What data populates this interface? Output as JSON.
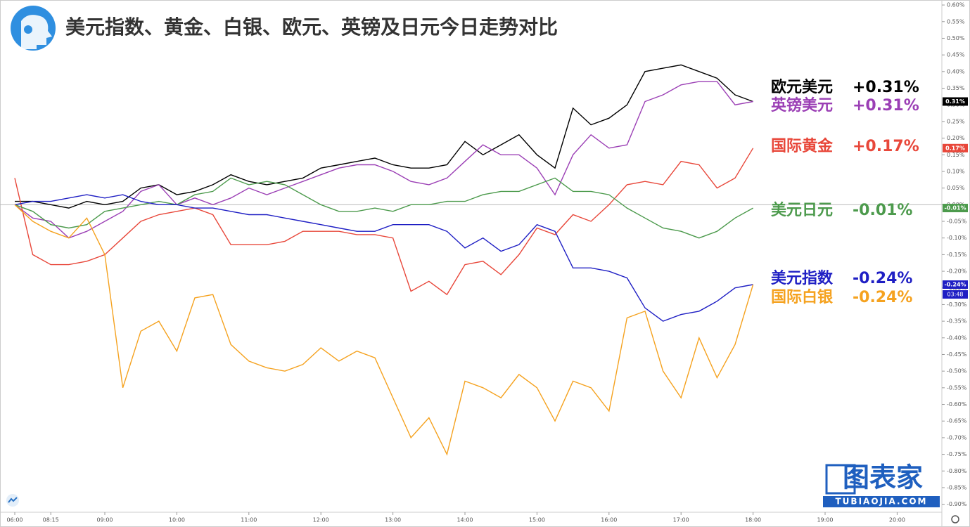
{
  "chart_data": {
    "type": "line",
    "title": "美元指数、黄金、白银、欧元、英镑及日元今日走势对比",
    "categories": [
      "06:00",
      null,
      "08:15",
      null,
      null,
      "09:00",
      null,
      null,
      null,
      "10:00",
      null,
      null,
      null,
      "11:00",
      null,
      null,
      null,
      "12:00",
      null,
      null,
      null,
      "13:00",
      null,
      null,
      null,
      "14:00",
      null,
      null,
      null,
      "15:00",
      null,
      null,
      null,
      "16:00",
      null,
      null,
      null,
      "17:00",
      null,
      null,
      null,
      "18:00",
      null,
      null,
      null,
      "19:00",
      null,
      null,
      null,
      "20:00"
    ],
    "series": [
      {
        "name": "欧元美元",
        "end_label": "+0.31%",
        "color": "#000000",
        "values": [
          0.01,
          0.01,
          0.0,
          -0.01,
          0.01,
          0.0,
          0.01,
          0.05,
          0.06,
          0.03,
          0.04,
          0.06,
          0.09,
          0.07,
          0.06,
          0.07,
          0.08,
          0.11,
          0.12,
          0.13,
          0.14,
          0.12,
          0.11,
          0.11,
          0.12,
          0.19,
          0.15,
          0.18,
          0.21,
          0.15,
          0.11,
          0.29,
          0.24,
          0.26,
          0.3,
          0.4,
          0.41,
          0.42,
          0.4,
          0.38,
          0.33,
          0.31,
          null,
          null,
          null,
          null,
          null,
          null,
          null,
          null
        ]
      },
      {
        "name": "英镑美元",
        "end_label": "+0.31%",
        "color": "#9b3fb5",
        "values": [
          0.0,
          -0.04,
          -0.05,
          -0.1,
          -0.08,
          -0.05,
          -0.02,
          0.04,
          0.06,
          0.0,
          0.02,
          0.0,
          0.02,
          0.05,
          0.03,
          0.05,
          0.07,
          0.09,
          0.11,
          0.12,
          0.12,
          0.1,
          0.07,
          0.06,
          0.08,
          0.13,
          0.18,
          0.15,
          0.15,
          0.11,
          0.03,
          0.15,
          0.21,
          0.17,
          0.18,
          0.31,
          0.33,
          0.36,
          0.37,
          0.37,
          0.3,
          0.31,
          null,
          null,
          null,
          null,
          null,
          null,
          null,
          null
        ]
      },
      {
        "name": "国际黄金",
        "end_label": "+0.17%",
        "color": "#e8473a",
        "values": [
          0.08,
          -0.15,
          -0.18,
          -0.18,
          -0.17,
          -0.15,
          -0.1,
          -0.05,
          -0.03,
          -0.02,
          -0.01,
          -0.03,
          -0.12,
          -0.12,
          -0.12,
          -0.11,
          -0.08,
          -0.08,
          -0.08,
          -0.09,
          -0.09,
          -0.1,
          -0.26,
          -0.23,
          -0.27,
          -0.18,
          -0.17,
          -0.21,
          -0.15,
          -0.07,
          -0.09,
          -0.03,
          -0.05,
          0.0,
          0.06,
          0.07,
          0.06,
          0.13,
          0.12,
          0.05,
          0.08,
          0.17,
          null,
          null,
          null,
          null,
          null,
          null,
          null,
          null
        ]
      },
      {
        "name": "美元日元",
        "end_label": "-0.01%",
        "color": "#4c9a4c",
        "values": [
          0.0,
          -0.02,
          -0.06,
          -0.07,
          -0.06,
          -0.02,
          -0.01,
          0.0,
          0.01,
          0.0,
          0.03,
          0.04,
          0.08,
          0.06,
          0.07,
          0.06,
          0.03,
          0.0,
          -0.02,
          -0.02,
          -0.01,
          -0.02,
          0.0,
          0.0,
          0.01,
          0.01,
          0.03,
          0.04,
          0.04,
          0.06,
          0.08,
          0.04,
          0.04,
          0.03,
          -0.01,
          -0.04,
          -0.07,
          -0.08,
          -0.1,
          -0.08,
          -0.04,
          -0.01,
          null,
          null,
          null,
          null,
          null,
          null,
          null,
          null
        ]
      },
      {
        "name": "美元指数",
        "end_label": "-0.24%",
        "color": "#1f1fc4",
        "values": [
          0.0,
          0.01,
          0.01,
          0.02,
          0.03,
          0.02,
          0.03,
          0.01,
          0.0,
          0.0,
          -0.01,
          -0.01,
          -0.02,
          -0.03,
          -0.03,
          -0.04,
          -0.05,
          -0.06,
          -0.07,
          -0.08,
          -0.08,
          -0.06,
          -0.06,
          -0.06,
          -0.08,
          -0.13,
          -0.1,
          -0.14,
          -0.12,
          -0.06,
          -0.08,
          -0.19,
          -0.19,
          -0.2,
          -0.22,
          -0.31,
          -0.35,
          -0.33,
          -0.32,
          -0.29,
          -0.25,
          -0.24,
          null,
          null,
          null,
          null,
          null,
          null,
          null,
          null
        ]
      },
      {
        "name": "国际白银",
        "end_label": "-0.24%",
        "color": "#f5a21f",
        "values": [
          0.0,
          -0.05,
          -0.08,
          -0.1,
          -0.04,
          -0.15,
          -0.55,
          -0.38,
          -0.35,
          -0.44,
          -0.28,
          -0.27,
          -0.42,
          -0.47,
          -0.49,
          -0.5,
          -0.48,
          -0.43,
          -0.47,
          -0.44,
          -0.46,
          -0.58,
          -0.7,
          -0.64,
          -0.75,
          -0.53,
          -0.55,
          -0.58,
          -0.51,
          -0.55,
          -0.65,
          -0.53,
          -0.55,
          -0.62,
          -0.34,
          -0.32,
          -0.5,
          -0.58,
          -0.4,
          -0.52,
          -0.42,
          -0.24,
          null,
          null,
          null,
          null,
          null,
          null,
          null,
          null
        ]
      }
    ],
    "price_tags": [
      {
        "value": 0.31,
        "label": "0.31%",
        "color": "#000000"
      },
      {
        "value": 0.17,
        "label": "0.17%",
        "color": "#e8473a"
      },
      {
        "value": -0.01,
        "label": "-0.01%",
        "color": "#4c9a4c"
      },
      {
        "value": -0.24,
        "label": "-0.24%",
        "color": "#1f1fc4"
      }
    ],
    "countdown": "03:48",
    "zero_line": 0,
    "ylim": [
      -0.924,
      0.615
    ],
    "yticks": [
      {
        "value": 0.6,
        "label": "0.60%"
      },
      {
        "value": 0.55,
        "label": "0.55%"
      },
      {
        "value": 0.5,
        "label": "0.50%"
      },
      {
        "value": 0.45,
        "label": "0.45%"
      },
      {
        "value": 0.4,
        "label": "0.40%"
      },
      {
        "value": 0.35,
        "label": "0.35%"
      },
      {
        "value": 0.3,
        "label": "0.30%"
      },
      {
        "value": 0.25,
        "label": "0.25%"
      },
      {
        "value": 0.2,
        "label": "0.20%"
      },
      {
        "value": 0.15,
        "label": "0.15%"
      },
      {
        "value": 0.1,
        "label": "0.10%"
      },
      {
        "value": 0.05,
        "label": "0.05%"
      },
      {
        "value": 0,
        "label": "0.00%"
      },
      {
        "value": -0.05,
        "label": "-0.05%"
      },
      {
        "value": -0.1,
        "label": "-0.10%"
      },
      {
        "value": -0.15,
        "label": "-0.15%"
      },
      {
        "value": -0.2,
        "label": "-0.20%"
      },
      {
        "value": -0.25,
        "label": "-0.25%"
      },
      {
        "value": -0.3,
        "label": "-0.30%"
      },
      {
        "value": -0.35,
        "label": "-0.35%"
      },
      {
        "value": -0.4,
        "label": "-0.40%"
      },
      {
        "value": -0.45,
        "label": "-0.45%"
      },
      {
        "value": -0.5,
        "label": "-0.50%"
      },
      {
        "value": -0.55,
        "label": "-0.55%"
      },
      {
        "value": -0.6,
        "label": "-0.60%"
      },
      {
        "value": -0.65,
        "label": "-0.65%"
      },
      {
        "value": -0.7,
        "label": "-0.70%"
      },
      {
        "value": -0.75,
        "label": "-0.75%"
      },
      {
        "value": -0.8,
        "label": "-0.80%"
      },
      {
        "value": -0.85,
        "label": "-0.85%"
      },
      {
        "value": -0.9,
        "label": "-0.90%"
      }
    ],
    "watermark": {
      "brand": "图表家",
      "site": "TUBIAOJIA.COM"
    }
  }
}
